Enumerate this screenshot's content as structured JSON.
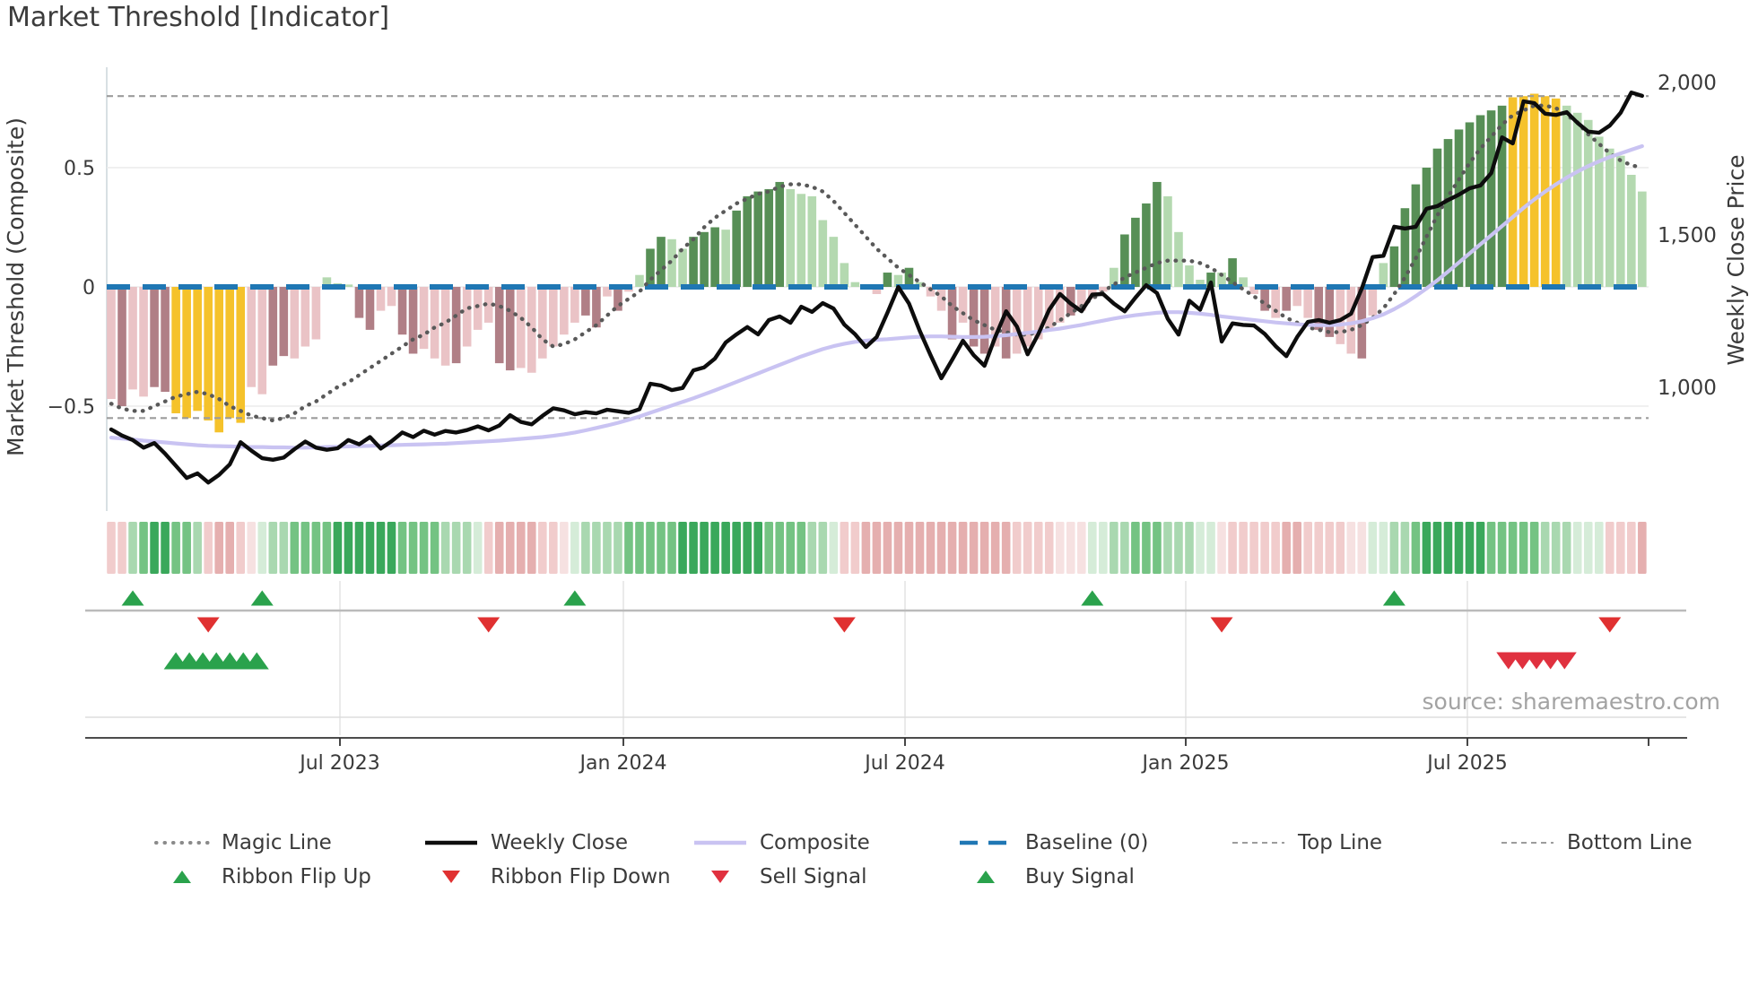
{
  "chart_data": {
    "type": "combo_bar_line",
    "title": "Market Threshold [Indicator]",
    "left_axis_label": "Market Threshold (Composite)",
    "right_axis_label": "Weekly Close Price",
    "left_tick_labels": [
      "0.5",
      "0",
      "−0.5"
    ],
    "left_tick_values": [
      0.5,
      0,
      -0.5
    ],
    "right_tick_labels": [
      "2,000",
      "1,500",
      "1,000"
    ],
    "right_tick_values": [
      2000,
      1500,
      1000
    ],
    "x_tick_labels": [
      "Jul 2023",
      "Jan 2024",
      "Jul 2024",
      "Jan 2025",
      "Jul 2025"
    ],
    "x_tick_weeks": [
      21.2,
      47.5,
      73.6,
      99.7,
      125.8
    ],
    "n_weeks": 143,
    "left_ylim": [
      -0.94,
      0.94
    ],
    "right_ylim": [
      585,
      2065
    ],
    "grid_values": [
      0.5,
      0,
      -0.5
    ],
    "reference_lines": {
      "baseline": 0,
      "top_line": 0.8,
      "bottom_line": -0.55
    },
    "threshold_bars": {
      "values": [
        -0.47,
        -0.5,
        -0.43,
        -0.46,
        -0.42,
        -0.44,
        -0.53,
        -0.55,
        -0.52,
        -0.56,
        -0.61,
        -0.55,
        -0.57,
        -0.42,
        -0.45,
        -0.33,
        -0.29,
        -0.3,
        -0.25,
        -0.22,
        0.04,
        0.015,
        0.01,
        -0.13,
        -0.18,
        -0.1,
        -0.08,
        -0.2,
        -0.28,
        -0.26,
        -0.3,
        -0.33,
        -0.32,
        -0.25,
        -0.18,
        -0.15,
        -0.32,
        -0.35,
        -0.34,
        -0.36,
        -0.3,
        -0.25,
        -0.2,
        -0.15,
        -0.12,
        -0.17,
        -0.04,
        -0.1,
        -0.02,
        0.05,
        0.16,
        0.21,
        0.2,
        0.16,
        0.21,
        0.23,
        0.25,
        0.24,
        0.32,
        0.38,
        0.4,
        0.41,
        0.44,
        0.41,
        0.39,
        0.38,
        0.28,
        0.21,
        0.1,
        0.02,
        -0.01,
        -0.03,
        0.06,
        0.05,
        0.08,
        0.02,
        -0.04,
        -0.1,
        -0.22,
        -0.15,
        -0.25,
        -0.28,
        -0.25,
        -0.3,
        -0.28,
        -0.25,
        -0.22,
        -0.18,
        -0.15,
        -0.12,
        -0.1,
        -0.05,
        -0.02,
        0.08,
        0.22,
        0.29,
        0.35,
        0.44,
        0.38,
        0.23,
        0.09,
        0.03,
        0.06,
        0.06,
        0.12,
        0.04,
        -0.03,
        -0.1,
        -0.13,
        -0.1,
        -0.08,
        -0.13,
        -0.18,
        -0.21,
        -0.24,
        -0.28,
        -0.3,
        -0.12,
        0.1,
        0.17,
        0.33,
        0.43,
        0.5,
        0.58,
        0.62,
        0.66,
        0.69,
        0.72,
        0.74,
        0.76,
        0.795,
        0.8,
        0.81,
        0.8,
        0.79,
        0.76,
        0.73,
        0.7,
        0.63,
        0.58,
        0.55,
        0.47,
        0.4
      ],
      "colors": [
        "P",
        "D",
        "P",
        "P",
        "D",
        "D",
        "Y",
        "Y",
        "Y",
        "Y",
        "Y",
        "Y",
        "Y",
        "P",
        "P",
        "D",
        "D",
        "P",
        "P",
        "P",
        "g",
        "g",
        "g",
        "D",
        "D",
        "P",
        "P",
        "D",
        "D",
        "P",
        "P",
        "P",
        "D",
        "P",
        "P",
        "P",
        "D",
        "D",
        "P",
        "P",
        "P",
        "P",
        "P",
        "P",
        "D",
        "D",
        "P",
        "D",
        "P",
        "g",
        "G",
        "G",
        "g",
        "g",
        "G",
        "G",
        "G",
        "g",
        "G",
        "G",
        "G",
        "G",
        "G",
        "g",
        "g",
        "g",
        "g",
        "g",
        "g",
        "g",
        "P",
        "P",
        "G",
        "g",
        "G",
        "g",
        "P",
        "P",
        "D",
        "P",
        "D",
        "D",
        "P",
        "D",
        "P",
        "P",
        "P",
        "P",
        "P",
        "D",
        "P",
        "P",
        "P",
        "g",
        "G",
        "G",
        "G",
        "G",
        "g",
        "g",
        "g",
        "g",
        "G",
        "g",
        "G",
        "g",
        "P",
        "D",
        "P",
        "D",
        "P",
        "P",
        "D",
        "D",
        "P",
        "P",
        "D",
        "P",
        "g",
        "G",
        "G",
        "G",
        "G",
        "G",
        "G",
        "G",
        "G",
        "G",
        "G",
        "G",
        "Y",
        "Y",
        "Y",
        "Y",
        "Y",
        "g",
        "g",
        "g",
        "g",
        "g",
        "g",
        "g",
        "g"
      ]
    },
    "magic_line": [
      -0.49,
      -0.51,
      -0.52,
      -0.52,
      -0.5,
      -0.48,
      -0.46,
      -0.45,
      -0.44,
      -0.45,
      -0.47,
      -0.5,
      -0.52,
      -0.54,
      -0.55,
      -0.56,
      -0.55,
      -0.53,
      -0.5,
      -0.48,
      -0.45,
      -0.42,
      -0.4,
      -0.37,
      -0.34,
      -0.31,
      -0.28,
      -0.25,
      -0.22,
      -0.2,
      -0.17,
      -0.15,
      -0.12,
      -0.09,
      -0.08,
      -0.07,
      -0.08,
      -0.1,
      -0.13,
      -0.17,
      -0.22,
      -0.25,
      -0.24,
      -0.22,
      -0.19,
      -0.16,
      -0.12,
      -0.08,
      -0.05,
      -0.02,
      0.03,
      0.07,
      0.11,
      0.16,
      0.2,
      0.25,
      0.29,
      0.32,
      0.35,
      0.37,
      0.39,
      0.4,
      0.42,
      0.43,
      0.43,
      0.42,
      0.4,
      0.36,
      0.31,
      0.26,
      0.21,
      0.16,
      0.12,
      0.08,
      0.05,
      0.02,
      -0.01,
      -0.04,
      -0.08,
      -0.11,
      -0.14,
      -0.16,
      -0.18,
      -0.19,
      -0.2,
      -0.2,
      -0.19,
      -0.17,
      -0.14,
      -0.11,
      -0.08,
      -0.05,
      -0.02,
      0.01,
      0.04,
      0.06,
      0.08,
      0.1,
      0.11,
      0.11,
      0.11,
      0.1,
      0.08,
      0.05,
      0.02,
      -0.01,
      -0.04,
      -0.07,
      -0.1,
      -0.13,
      -0.15,
      -0.17,
      -0.18,
      -0.19,
      -0.19,
      -0.18,
      -0.16,
      -0.13,
      -0.09,
      -0.03,
      0.04,
      0.12,
      0.21,
      0.3,
      0.38,
      0.45,
      0.52,
      0.58,
      0.63,
      0.68,
      0.72,
      0.74,
      0.76,
      0.76,
      0.75,
      0.72,
      0.69,
      0.64,
      0.6,
      0.56,
      0.53,
      0.51,
      0.5
    ],
    "weekly_close": [
      855,
      835,
      820,
      795,
      810,
      775,
      735,
      695,
      710,
      680,
      705,
      740,
      813,
      785,
      760,
      755,
      762,
      790,
      815,
      795,
      788,
      793,
      820,
      806,
      830,
      792,
      816,
      845,
      830,
      851,
      838,
      850,
      845,
      853,
      865,
      852,
      868,
      902,
      880,
      872,
      900,
      925,
      918,
      905,
      912,
      908,
      920,
      915,
      910,
      922,
      1006,
      1000,
      985,
      992,
      1050,
      1060,
      1089,
      1142,
      1169,
      1193,
      1169,
      1216,
      1228,
      1207,
      1260,
      1243,
      1272,
      1254,
      1201,
      1169,
      1127,
      1160,
      1240,
      1325,
      1270,
      1180,
      1100,
      1024,
      1085,
      1148,
      1100,
      1065,
      1160,
      1245,
      1195,
      1103,
      1170,
      1250,
      1302,
      1270,
      1245,
      1300,
      1302,
      1270,
      1245,
      1290,
      1331,
      1305,
      1220,
      1168,
      1280,
      1250,
      1340,
      1145,
      1205,
      1200,
      1198,
      1170,
      1130,
      1097,
      1160,
      1210,
      1216,
      1207,
      1216,
      1237,
      1320,
      1424,
      1428,
      1524,
      1518,
      1524,
      1583,
      1592,
      1612,
      1630,
      1651,
      1660,
      1701,
      1819,
      1799,
      1938,
      1932,
      1897,
      1893,
      1902,
      1867,
      1838,
      1834,
      1858,
      1900,
      1967,
      1956
    ],
    "composite": [
      828,
      825,
      822,
      818,
      815,
      812,
      809,
      806,
      803,
      801,
      800,
      799,
      798,
      797,
      797,
      796,
      796,
      795,
      795,
      796,
      797,
      798,
      799,
      800,
      801,
      802,
      803,
      804,
      805,
      806,
      807,
      808,
      810,
      812,
      814,
      816,
      818,
      821,
      824,
      827,
      830,
      834,
      839,
      845,
      852,
      860,
      868,
      877,
      887,
      898,
      910,
      922,
      934,
      946,
      958,
      971,
      984,
      998,
      1012,
      1026,
      1040,
      1054,
      1068,
      1082,
      1096,
      1108,
      1120,
      1130,
      1138,
      1144,
      1148,
      1151,
      1153,
      1156,
      1159,
      1161,
      1162,
      1162,
      1161,
      1160,
      1160,
      1161,
      1163,
      1166,
      1170,
      1174,
      1178,
      1183,
      1188,
      1194,
      1200,
      1207,
      1214,
      1221,
      1227,
      1232,
      1236,
      1240,
      1242,
      1242,
      1240,
      1237,
      1233,
      1228,
      1224,
      1220,
      1216,
      1212,
      1208,
      1205,
      1202,
      1200,
      1199,
      1199,
      1201,
      1205,
      1212,
      1222,
      1235,
      1252,
      1272,
      1295,
      1320,
      1347,
      1376,
      1406,
      1436,
      1466,
      1496,
      1526,
      1556,
      1586,
      1614,
      1640,
      1664,
      1686,
      1706,
      1724,
      1740,
      1754,
      1766,
      1778,
      1790
    ],
    "ribbon": [
      "R1",
      "R1",
      "G1",
      "G2",
      "G3",
      "G3",
      "G2",
      "G2",
      "G1",
      "R1",
      "R2",
      "R2",
      "R1",
      "R0",
      "G0",
      "G1",
      "G1",
      "G2",
      "G2",
      "G2",
      "G2",
      "G3",
      "G3",
      "G3",
      "G3",
      "G3",
      "G3",
      "G2",
      "G2",
      "G2",
      "G2",
      "G1",
      "G1",
      "G1",
      "G0",
      "R1",
      "R2",
      "R2",
      "R2",
      "R2",
      "R1",
      "R1",
      "R0",
      "G0",
      "G1",
      "G1",
      "G1",
      "G1",
      "G2",
      "G2",
      "G2",
      "G2",
      "G2",
      "G3",
      "G3",
      "G3",
      "G3",
      "G3",
      "G3",
      "G3",
      "G3",
      "G2",
      "G2",
      "G2",
      "G2",
      "G1",
      "G1",
      "G0",
      "R1",
      "R1",
      "R2",
      "R2",
      "R2",
      "R2",
      "R2",
      "R2",
      "R2",
      "R2",
      "R2",
      "R2",
      "R2",
      "R2",
      "R2",
      "R2",
      "R1",
      "R1",
      "R1",
      "R1",
      "R0",
      "R0",
      "R0",
      "G0",
      "G0",
      "G1",
      "G1",
      "G2",
      "G2",
      "G2",
      "G1",
      "G1",
      "G1",
      "G0",
      "G0",
      "R0",
      "R1",
      "R1",
      "R1",
      "R1",
      "R1",
      "R2",
      "R2",
      "R1",
      "R1",
      "R1",
      "R1",
      "R0",
      "R0",
      "G0",
      "G0",
      "G1",
      "G1",
      "G2",
      "G3",
      "G3",
      "G3",
      "G3",
      "G3",
      "G3",
      "G2",
      "G2",
      "G2",
      "G2",
      "G2",
      "G1",
      "G1",
      "G1",
      "G0",
      "G0",
      "G0",
      "R1",
      "R1",
      "R1",
      "R2"
    ],
    "signals": {
      "ribbon_flip_up_weeks": [
        2,
        14,
        43,
        91,
        119
      ],
      "ribbon_flip_down_weeks": [
        9,
        35,
        68,
        103,
        139
      ],
      "buy_signal_weeks": [
        6,
        7.25,
        8.5,
        9.75,
        11,
        12.25,
        13.5
      ],
      "sell_signal_weeks": [
        129.6,
        130.9,
        132.2,
        133.5,
        134.8
      ]
    }
  },
  "colors": {
    "bar_palette": {
      "P": "#eac3c6",
      "D": "#b07f86",
      "Y": "#f5c22b",
      "g": "#b4d9b0",
      "G": "#578f56"
    },
    "ribbon_palette": {
      "G3": "#3aa85b",
      "G2": "#74c383",
      "G1": "#a9d8b0",
      "G0": "#d5ecd8",
      "R0": "#f6e1e1",
      "R1": "#f1cccc",
      "R2": "#e5afaf"
    },
    "magic_line": "#595959",
    "weekly_close": "#0d0d0d",
    "composite": "#c9c3f2",
    "baseline": "#1f77b4",
    "top_bottom_line": "#9c9c9c",
    "flip_up_green": "#2aa24c",
    "flip_down_red": "#e03131",
    "buy_green": "#2aa24c",
    "sell_red": "#e0313f"
  },
  "legend": {
    "items": [
      {
        "label": "Magic Line",
        "glyph": "dotted-gray-line"
      },
      {
        "label": "Weekly Close",
        "glyph": "solid-black-line"
      },
      {
        "label": "Composite",
        "glyph": "solid-lavender-line"
      },
      {
        "label": "Baseline (0)",
        "glyph": "dashed-blue-line"
      },
      {
        "label": "Top Line",
        "glyph": "dashed-gray-line"
      },
      {
        "label": "Bottom Line",
        "glyph": "dashed-gray-line"
      },
      {
        "label": "Ribbon Flip Up",
        "glyph": "green-up-triangle"
      },
      {
        "label": "Ribbon Flip Down",
        "glyph": "red-down-triangle"
      },
      {
        "label": "Sell Signal",
        "glyph": "red-down-triangle"
      },
      {
        "label": "Buy Signal",
        "glyph": "green-up-triangle"
      }
    ]
  },
  "source_note": "source: sharemaestro.com"
}
